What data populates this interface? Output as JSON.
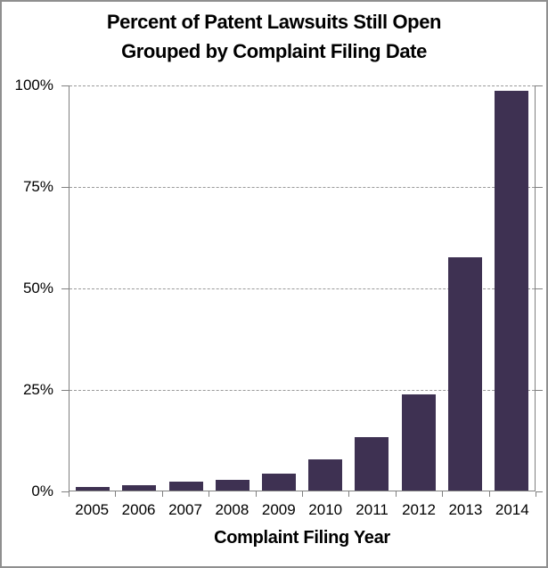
{
  "chart_data": {
    "type": "bar",
    "title": "Percent of Patent Lawsuits Still Open Grouped by Complaint Filing Date",
    "title_lines": [
      "Percent of Patent Lawsuits Still Open",
      "Grouped by Complaint Filing Date"
    ],
    "categories": [
      "2005",
      "2006",
      "2007",
      "2008",
      "2009",
      "2010",
      "2011",
      "2012",
      "2013",
      "2014"
    ],
    "values": [
      0.9,
      1.4,
      2.1,
      2.7,
      4.1,
      7.6,
      13.2,
      23.7,
      57.5,
      98.5
    ],
    "xlabel": "Complaint Filing Year",
    "ylabel": "",
    "ylim": [
      0,
      100
    ],
    "yticks": [
      0,
      25,
      50,
      75,
      100
    ],
    "ytick_labels": [
      "0%",
      "25%",
      "50%",
      "75%",
      "100%"
    ],
    "legend": "none",
    "grid": "horizontal, dashed, at 25% intervals",
    "colors": {
      "bar": "#3E3152",
      "axis": "#808080",
      "gridline": "#9a9a9a",
      "text": "#000000",
      "frame_border": "#8f8f8f",
      "background": "#ffffff"
    }
  }
}
